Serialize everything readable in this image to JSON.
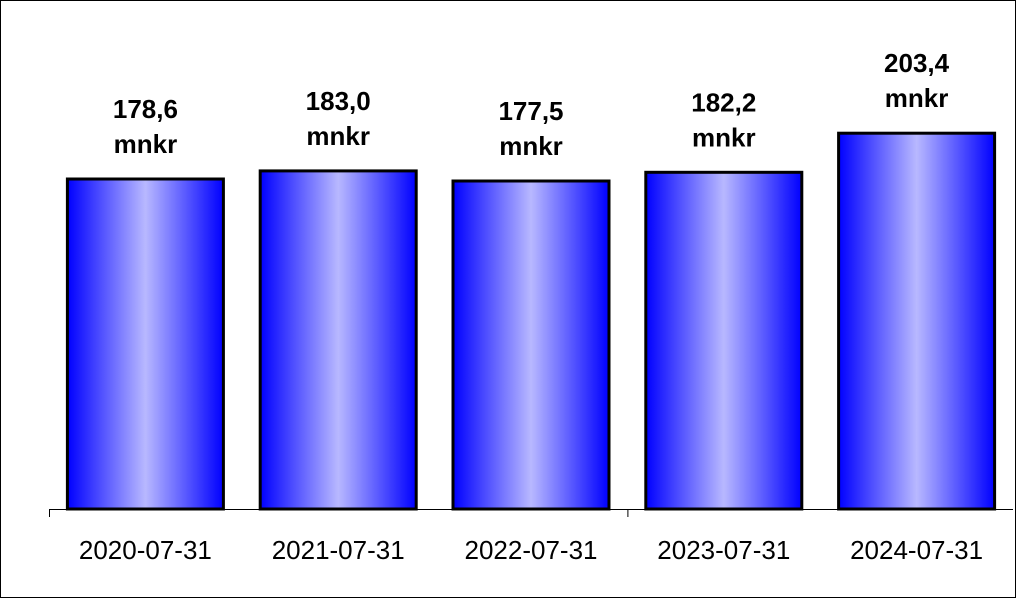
{
  "chart_data": {
    "type": "bar",
    "title": "",
    "xlabel": "",
    "ylabel": "",
    "categories": [
      "2020-07-31",
      "2021-07-31",
      "2022-07-31",
      "2023-07-31",
      "2024-07-31"
    ],
    "values": [
      178.6,
      183.0,
      177.5,
      182.2,
      203.4
    ],
    "value_labels": [
      "178,6",
      "183,0",
      "177,5",
      "182,2",
      "203,4"
    ],
    "unit": "mnkr",
    "ylim": [
      0,
      230
    ],
    "grid": false,
    "colors": {
      "bar_edge": "#0000ff",
      "bar_center": "#b8b8ff",
      "outline": "#000000"
    }
  }
}
